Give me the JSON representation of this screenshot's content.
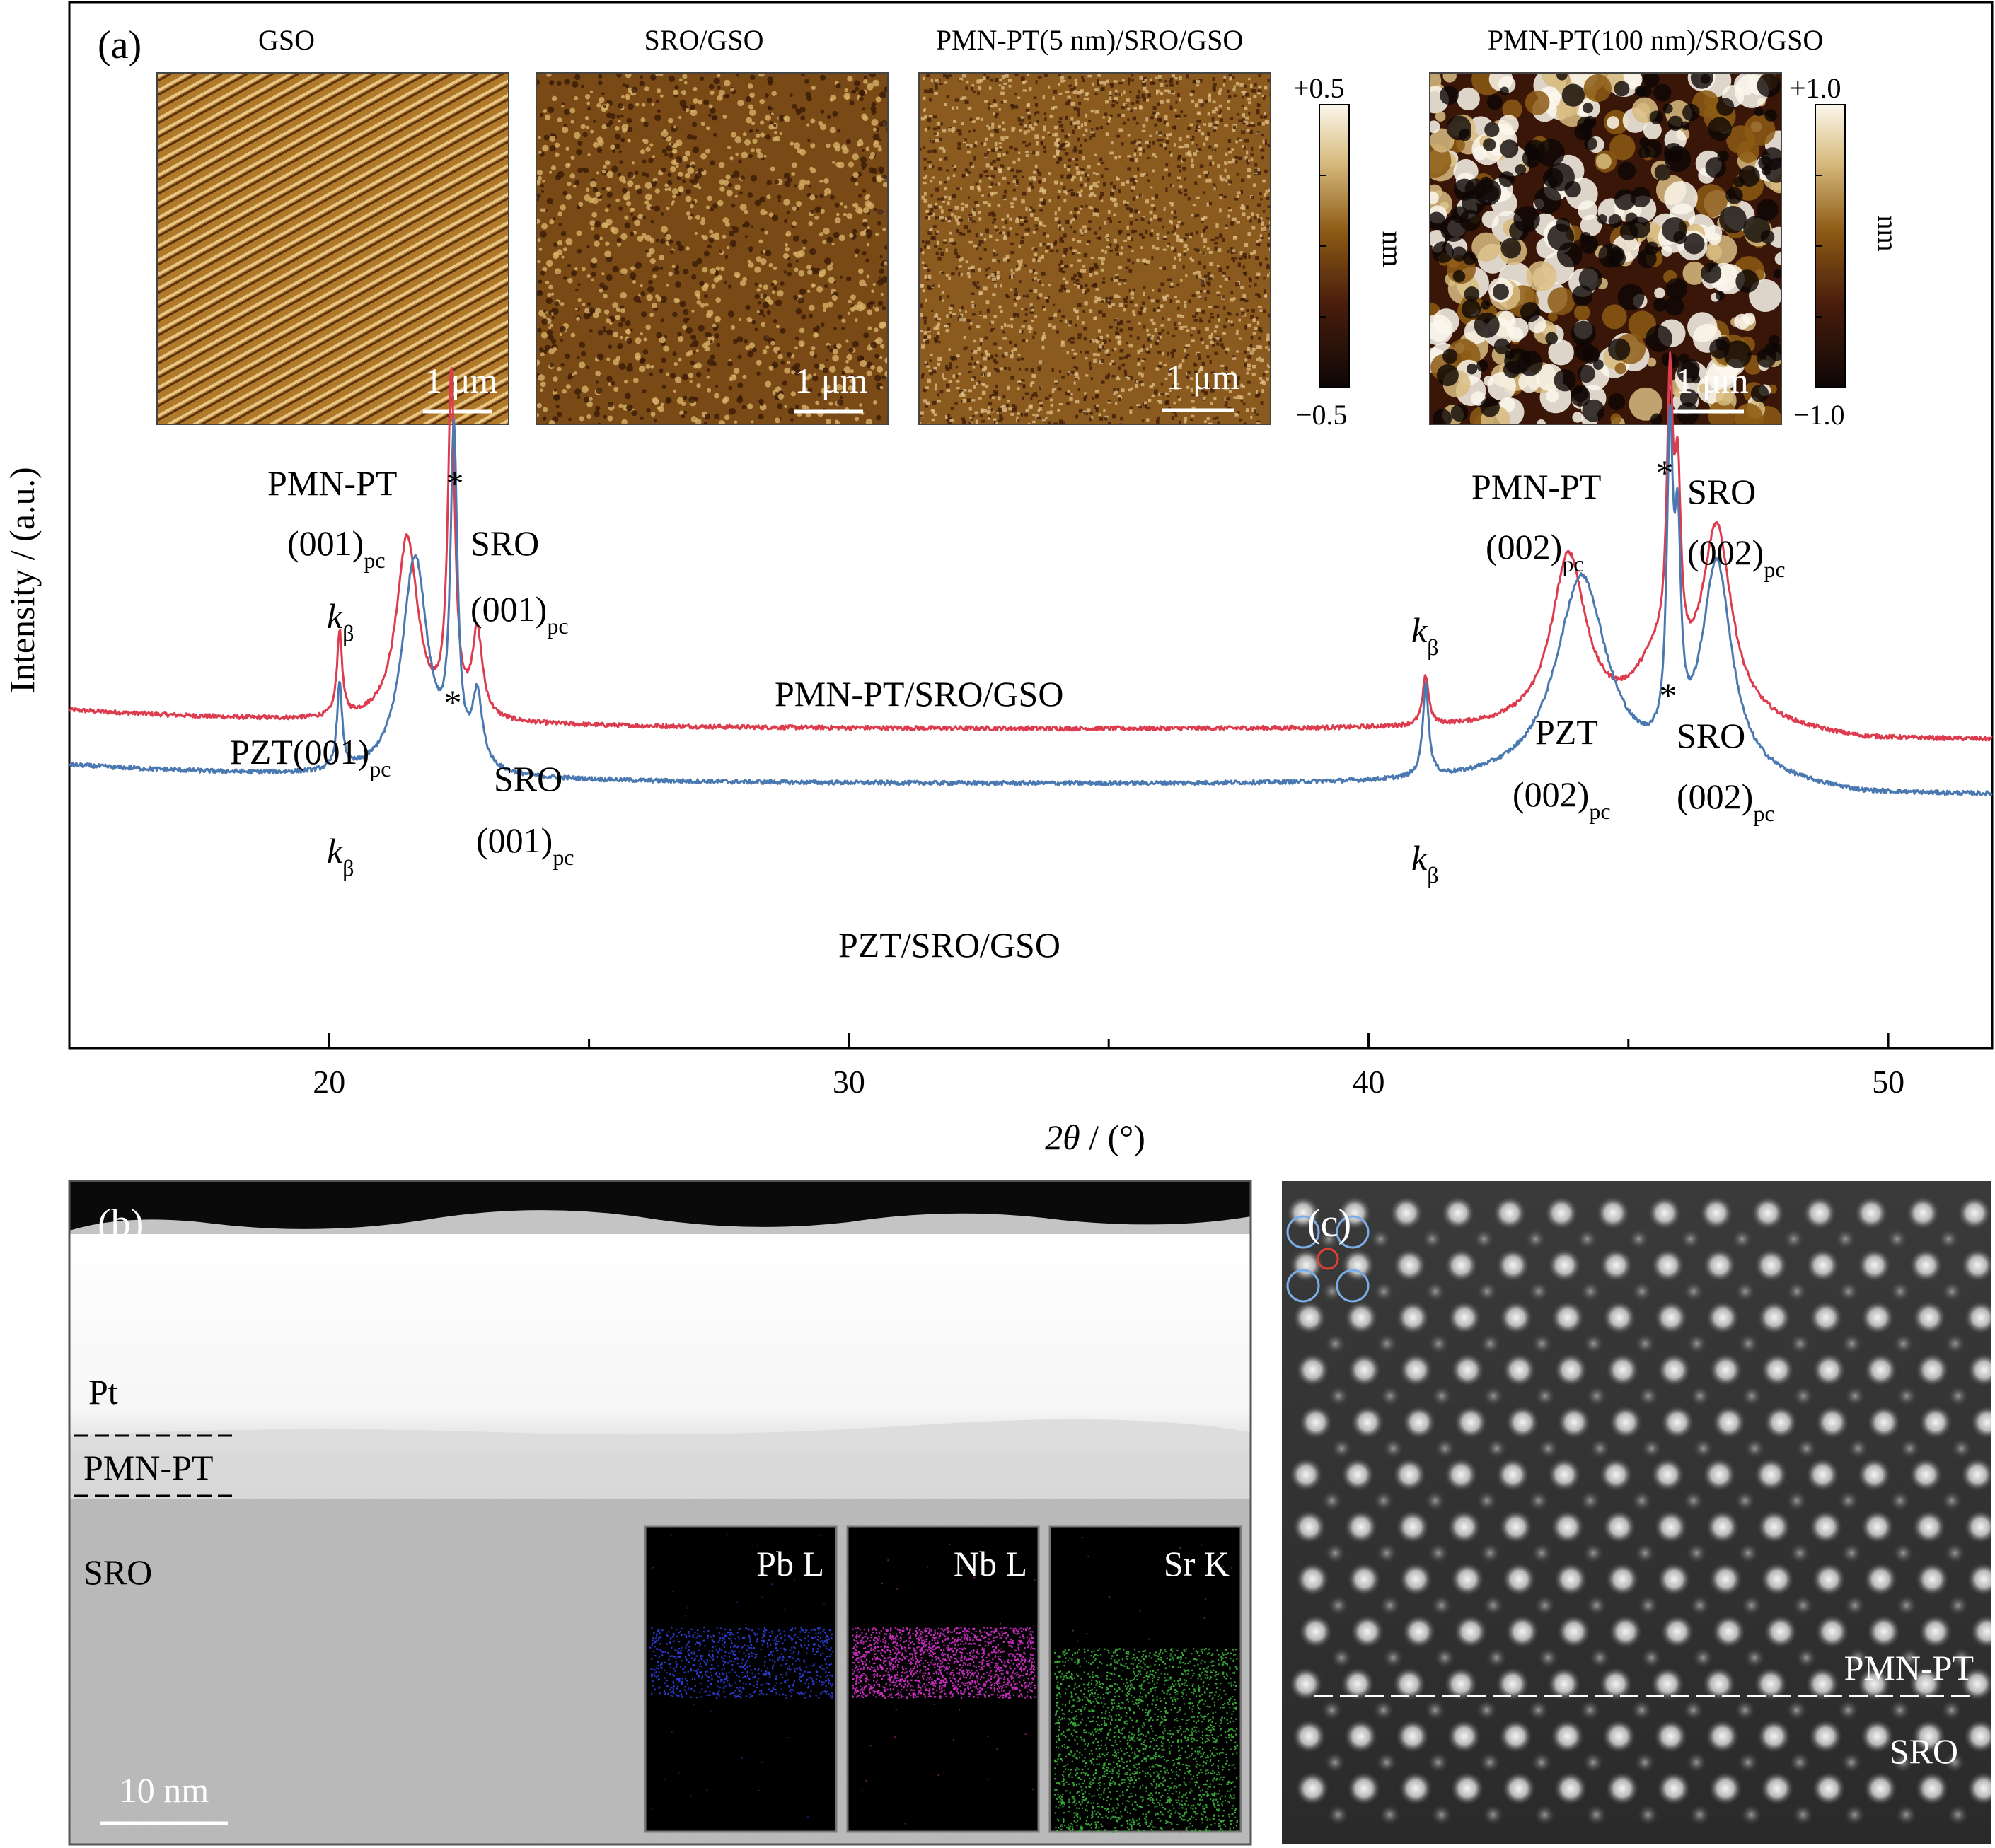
{
  "panel_labels": {
    "a": "(a)",
    "b": "(b)",
    "c": "(c)"
  },
  "afm": {
    "images": [
      {
        "title": "GSO",
        "scale": "1 μm",
        "pattern": "steps"
      },
      {
        "title": "SRO/GSO",
        "scale": "1 μm",
        "pattern": "dots"
      },
      {
        "title": "PMN-PT(5 nm)/SRO/GSO",
        "scale": "1 μm",
        "pattern": "grain"
      },
      {
        "title": "PMN-PT(100 nm)/SRO/GSO",
        "scale": "1 μm",
        "pattern": "blobs"
      }
    ],
    "colorbars": [
      {
        "max": "+0.5",
        "min": "−0.5",
        "unit": "nm"
      },
      {
        "max": "+1.0",
        "min": "−1.0",
        "unit": "nm"
      }
    ],
    "colors": [
      "#0d0605",
      "#4a1e0d",
      "#8c5a14",
      "#d8bc80",
      "#fbf7ec"
    ]
  },
  "chart_data": {
    "type": "line",
    "xlabel_var": "2θ",
    "xlabel_unit": " / (°)",
    "ylabel": "Intensity / (a.u.)",
    "xlim": [
      15,
      52
    ],
    "xticks": [
      20,
      30,
      40,
      50
    ],
    "yticks_shown": false,
    "series": [
      {
        "name": "PMN-PT/SRO/GSO",
        "color": "#dc3c4e",
        "baseline": 1.0,
        "noise": 0.03,
        "peaks": [
          {
            "x": 20.2,
            "h": 1.2,
            "w": 0.06
          },
          {
            "x": 21.5,
            "h": 2.6,
            "w": 0.25
          },
          {
            "x": 22.35,
            "h": 4.8,
            "w": 0.08
          },
          {
            "x": 22.85,
            "h": 1.2,
            "w": 0.12
          },
          {
            "x": 41.1,
            "h": 0.7,
            "w": 0.07
          },
          {
            "x": 43.85,
            "h": 2.4,
            "w": 0.4
          },
          {
            "x": 45.55,
            "h": 0.8,
            "w": 0.5
          },
          {
            "x": 45.8,
            "h": 3.8,
            "w": 0.07
          },
          {
            "x": 45.95,
            "h": 2.4,
            "w": 0.07
          },
          {
            "x": 46.7,
            "h": 2.7,
            "w": 0.35
          }
        ]
      },
      {
        "name": "PZT/SRO/GSO",
        "color": "#4a78b0",
        "baseline": 0.22,
        "noise": 0.03,
        "peaks": [
          {
            "x": 20.2,
            "h": 1.2,
            "w": 0.06
          },
          {
            "x": 21.65,
            "h": 3.1,
            "w": 0.3
          },
          {
            "x": 22.4,
            "h": 4.6,
            "w": 0.08
          },
          {
            "x": 22.85,
            "h": 1.0,
            "w": 0.12
          },
          {
            "x": 41.1,
            "h": 1.3,
            "w": 0.07
          },
          {
            "x": 44.1,
            "h": 2.9,
            "w": 0.6
          },
          {
            "x": 45.8,
            "h": 4.2,
            "w": 0.07
          },
          {
            "x": 45.95,
            "h": 2.6,
            "w": 0.07
          },
          {
            "x": 46.7,
            "h": 3.0,
            "w": 0.35
          }
        ]
      }
    ]
  },
  "xrd_labels": {
    "asterisk": "*",
    "k_base": "k",
    "k_sub": "β",
    "pmnpt": "PMN-PT",
    "pzt001": "PZT(001)",
    "pzt": "PZT",
    "sro": "SRO",
    "i001": "(001)",
    "i002": "(002)",
    "pc": "pc",
    "series_pmnpt": "PMN-PT/SRO/GSO",
    "series_pzt": "PZT/SRO/GSO"
  },
  "stem": {
    "labels": [
      "Pt",
      "PMN-PT",
      "SRO"
    ],
    "scale": "10 nm",
    "eds": [
      {
        "label": "Pb L",
        "color": "#3040e0"
      },
      {
        "label": "Nb L",
        "color": "#d030c8"
      },
      {
        "label": "Sr K",
        "color": "#3cb43c"
      }
    ]
  },
  "hrstem": {
    "labels": [
      "PMN-PT",
      "SRO"
    ]
  }
}
